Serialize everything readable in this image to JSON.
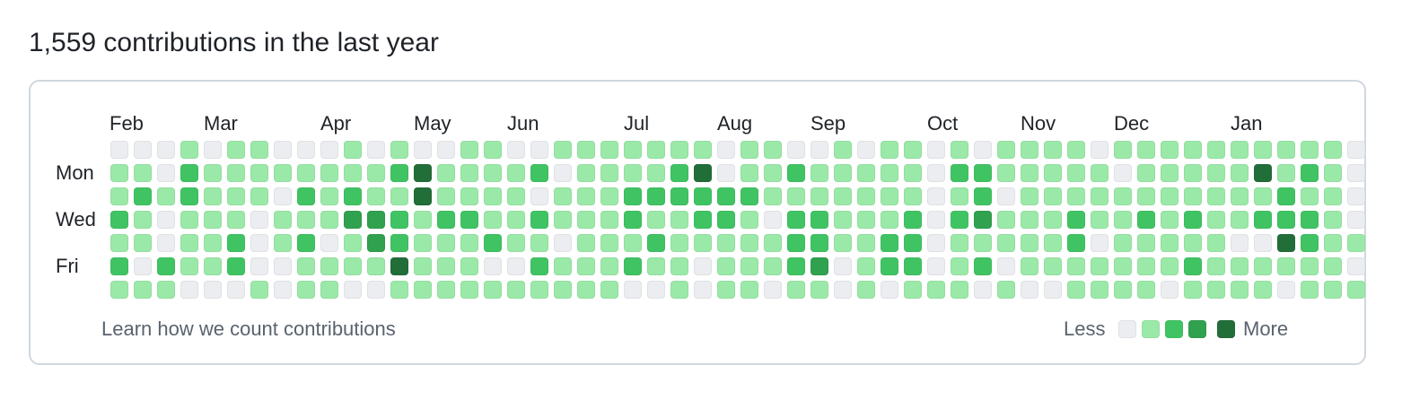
{
  "heading": "1,559 contributions in the last year",
  "months": [
    "Feb",
    "Mar",
    "Apr",
    "May",
    "Jun",
    "Jul",
    "Aug",
    "Sep",
    "Oct",
    "Nov",
    "Dec",
    "Jan"
  ],
  "days": {
    "mon": "Mon",
    "wed": "Wed",
    "fri": "Fri"
  },
  "footer": {
    "link": "Learn how we count contributions",
    "less": "Less",
    "more": "More"
  },
  "colors": {
    "level0": "#ebedf0",
    "level1": "#9be9a8",
    "level2": "#40c463",
    "level3": "#30a14e",
    "level4": "#216e39"
  },
  "weeks": [
    [
      0,
      1,
      1,
      2,
      1,
      2,
      1
    ],
    [
      0,
      1,
      2,
      1,
      1,
      0,
      1
    ],
    [
      0,
      0,
      1,
      0,
      0,
      2,
      1
    ],
    [
      1,
      2,
      2,
      1,
      1,
      1,
      0
    ],
    [
      0,
      1,
      1,
      1,
      1,
      1,
      0
    ],
    [
      1,
      1,
      1,
      1,
      2,
      2,
      0
    ],
    [
      1,
      1,
      1,
      0,
      0,
      0,
      1
    ],
    [
      0,
      1,
      0,
      1,
      1,
      0,
      0
    ],
    [
      0,
      1,
      2,
      1,
      2,
      1,
      1
    ],
    [
      0,
      1,
      1,
      1,
      0,
      1,
      1
    ],
    [
      1,
      1,
      2,
      3,
      1,
      1,
      0
    ],
    [
      0,
      1,
      1,
      3,
      3,
      1,
      0
    ],
    [
      1,
      2,
      1,
      2,
      2,
      4,
      1
    ],
    [
      0,
      4,
      4,
      1,
      1,
      1,
      1
    ],
    [
      0,
      1,
      1,
      2,
      1,
      1,
      1
    ],
    [
      1,
      1,
      1,
      2,
      1,
      1,
      1
    ],
    [
      1,
      1,
      1,
      1,
      2,
      0,
      1
    ],
    [
      0,
      1,
      1,
      1,
      1,
      0,
      1
    ],
    [
      0,
      2,
      0,
      2,
      1,
      2,
      1
    ],
    [
      1,
      0,
      1,
      1,
      0,
      1,
      1
    ],
    [
      1,
      1,
      1,
      1,
      1,
      1,
      1
    ],
    [
      1,
      1,
      1,
      1,
      1,
      1,
      1
    ],
    [
      1,
      1,
      2,
      2,
      1,
      2,
      0
    ],
    [
      1,
      1,
      2,
      1,
      2,
      1,
      0
    ],
    [
      1,
      2,
      2,
      1,
      1,
      1,
      1
    ],
    [
      1,
      4,
      2,
      2,
      1,
      0,
      0
    ],
    [
      0,
      0,
      2,
      2,
      1,
      1,
      1
    ],
    [
      1,
      1,
      2,
      1,
      1,
      1,
      1
    ],
    [
      1,
      1,
      1,
      0,
      1,
      1,
      0
    ],
    [
      0,
      2,
      1,
      2,
      2,
      2,
      1
    ],
    [
      0,
      1,
      1,
      2,
      2,
      3,
      1
    ],
    [
      1,
      1,
      1,
      1,
      1,
      0,
      0
    ],
    [
      0,
      1,
      1,
      1,
      1,
      1,
      1
    ],
    [
      1,
      1,
      1,
      1,
      2,
      2,
      0
    ],
    [
      1,
      1,
      1,
      2,
      2,
      2,
      1
    ],
    [
      0,
      0,
      0,
      0,
      0,
      0,
      1
    ],
    [
      1,
      2,
      1,
      2,
      1,
      1,
      1
    ],
    [
      0,
      2,
      2,
      3,
      1,
      2,
      0
    ],
    [
      1,
      1,
      0,
      1,
      1,
      0,
      1
    ],
    [
      1,
      1,
      1,
      1,
      1,
      1,
      0
    ],
    [
      1,
      1,
      1,
      1,
      1,
      1,
      0
    ],
    [
      1,
      1,
      1,
      2,
      2,
      1,
      1
    ],
    [
      0,
      1,
      1,
      1,
      0,
      1,
      1
    ],
    [
      1,
      0,
      1,
      1,
      1,
      1,
      1
    ],
    [
      1,
      1,
      1,
      2,
      1,
      1,
      1
    ],
    [
      1,
      1,
      1,
      1,
      1,
      1,
      0
    ],
    [
      1,
      1,
      1,
      2,
      1,
      2,
      1
    ],
    [
      1,
      1,
      1,
      1,
      1,
      1,
      1
    ],
    [
      1,
      1,
      1,
      1,
      0,
      1,
      1
    ],
    [
      1,
      4,
      1,
      2,
      0,
      1,
      1
    ],
    [
      1,
      1,
      2,
      2,
      4,
      1,
      0
    ],
    [
      1,
      2,
      1,
      2,
      2,
      1,
      1
    ],
    [
      1,
      1,
      1,
      1,
      1,
      1,
      1
    ],
    [
      0,
      0,
      0,
      0,
      1,
      0,
      1
    ]
  ]
}
